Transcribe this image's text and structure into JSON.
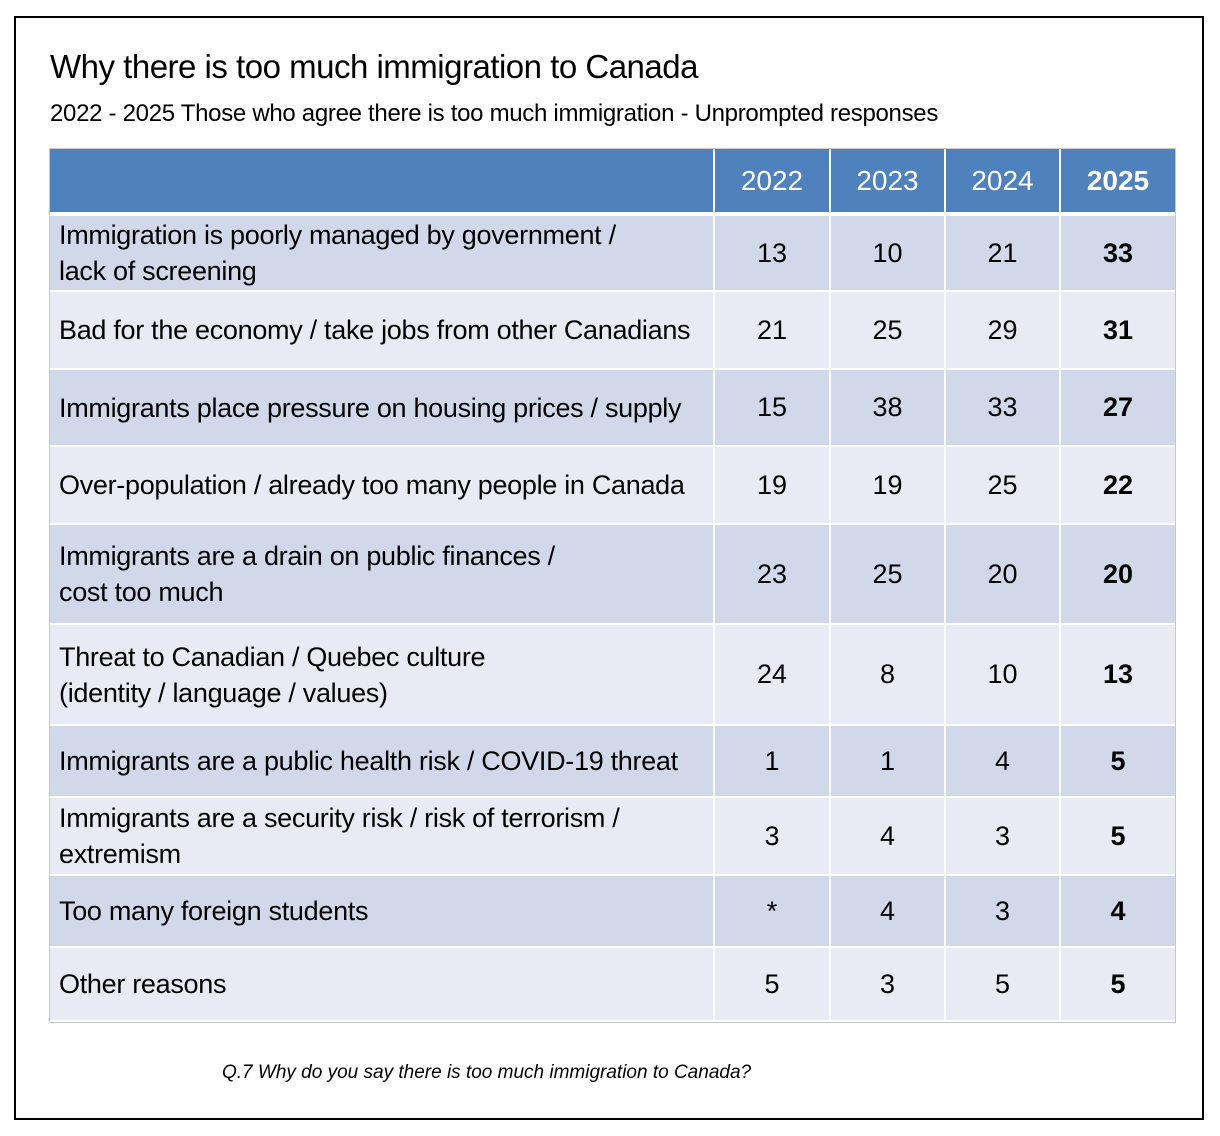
{
  "title": "Why there is too much immigration to Canada",
  "subtitle": "2022 - 2025  Those who agree there is too much immigration - Unprompted responses",
  "footnote": "Q.7  Why do you say there is too much immigration to Canada?",
  "colors": {
    "header_bg": "#4f81bd",
    "row_odd": "#d0d8ea",
    "row_even": "#e9ebf4"
  },
  "chart_data": {
    "type": "table",
    "title": "Why there is too much immigration to Canada",
    "subtitle": "2022 - 2025  Those who agree there is too much immigration - Unprompted responses",
    "columns": [
      "2022",
      "2023",
      "2024",
      "2025"
    ],
    "rows": [
      {
        "label": "Immigration is poorly managed by government /\nlack of screening",
        "values": [
          "13",
          "10",
          "21",
          "33"
        ]
      },
      {
        "label": "Bad for the economy / take jobs from other Canadians",
        "values": [
          "21",
          "25",
          "29",
          "31"
        ]
      },
      {
        "label": "Immigrants place pressure on housing prices / supply",
        "values": [
          "15",
          "38",
          "33",
          "27"
        ]
      },
      {
        "label": "Over-population / already too many people in Canada",
        "values": [
          "19",
          "19",
          "25",
          "22"
        ]
      },
      {
        "label": "Immigrants are a drain on public finances /\ncost too much",
        "values": [
          "23",
          "25",
          "20",
          "20"
        ]
      },
      {
        "label": "Threat to Canadian / Quebec culture\n(identity / language / values)",
        "values": [
          "24",
          "8",
          "10",
          "13"
        ]
      },
      {
        "label": "Immigrants are a public health risk / COVID-19 threat",
        "values": [
          "1",
          "1",
          "4",
          "5"
        ]
      },
      {
        "label": "Immigrants are a security risk / risk of terrorism /\nextremism",
        "values": [
          "3",
          "4",
          "3",
          "5"
        ]
      },
      {
        "label": "Too many foreign students",
        "values": [
          "*",
          "4",
          "3",
          "4"
        ]
      },
      {
        "label": "Other reasons",
        "values": [
          "5",
          "3",
          "5",
          "5"
        ]
      }
    ]
  }
}
